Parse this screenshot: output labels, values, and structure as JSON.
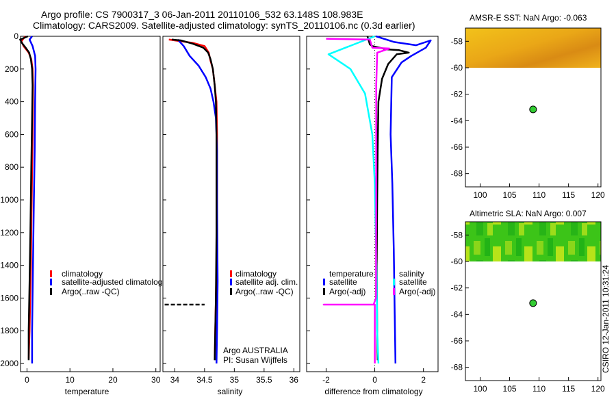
{
  "header": {
    "line1": "Argo profile: CS 7900317_3 06-Jan-2011 20110106_532 63.148S 108.983E",
    "line2": "Climatology: CARS2009. Satellite-adjusted climatology: synTS_20110106.nc (0.3d earlier)"
  },
  "stamp": "CSIRO 12-Jan-2011 10:31:24",
  "colors": {
    "red": "#ff0000",
    "blue": "#0000ff",
    "black": "#000000",
    "cyan": "#00ffff",
    "magenta": "#ff00ff",
    "float": "#33cc33"
  },
  "depth_axis": {
    "ylim": [
      0,
      2050
    ],
    "ticks": [
      0,
      200,
      400,
      600,
      800,
      1000,
      1200,
      1400,
      1600,
      1800,
      2000
    ]
  },
  "chart_data": [
    {
      "id": "temperature",
      "type": "line",
      "xlabel": "temperature",
      "xlim": [
        -1.5,
        31
      ],
      "xticks": [
        0,
        10,
        20,
        30
      ],
      "legend": [
        "climatology",
        "satellite-adjusted climatolog",
        "Argo(..raw -QC)"
      ],
      "series": [
        {
          "name": "climatology",
          "color": "red",
          "points": [
            [
              -0.4,
              0
            ],
            [
              -1.3,
              30
            ],
            [
              -0.8,
              60
            ],
            [
              0.4,
              100
            ],
            [
              1.0,
              140
            ],
            [
              1.3,
              200
            ],
            [
              1.4,
              300
            ],
            [
              1.3,
              600
            ],
            [
              1.1,
              1000
            ],
            [
              0.9,
              1400
            ],
            [
              0.6,
              1800
            ],
            [
              0.4,
              1970
            ]
          ]
        },
        {
          "name": "satellite-adjusted climatology",
          "color": "blue",
          "points": [
            [
              1.2,
              0
            ],
            [
              0.6,
              20
            ],
            [
              1.3,
              60
            ],
            [
              1.9,
              120
            ],
            [
              2.0,
              200
            ],
            [
              1.9,
              400
            ],
            [
              1.8,
              700
            ],
            [
              1.6,
              1000
            ],
            [
              1.4,
              1400
            ],
            [
              1.2,
              1800
            ],
            [
              1.2,
              2000
            ]
          ]
        },
        {
          "name": "Argo(..raw -QC)",
          "color": "black",
          "points": [
            [
              0.2,
              0
            ],
            [
              -1.6,
              20
            ],
            [
              -1.2,
              40
            ],
            [
              -0.3,
              70
            ],
            [
              0.5,
              100
            ],
            [
              0.9,
              140
            ],
            [
              1.2,
              200
            ],
            [
              1.3,
              300
            ],
            [
              1.2,
              500
            ],
            [
              1.0,
              800
            ],
            [
              0.8,
              1200
            ],
            [
              0.6,
              1500
            ],
            [
              0.4,
              1800
            ],
            [
              0.4,
              1980
            ]
          ]
        }
      ]
    },
    {
      "id": "salinity",
      "type": "line",
      "xlabel": "salinity",
      "xlim": [
        33.8,
        36.1
      ],
      "xticks": [
        34,
        34.5,
        35,
        35.5,
        36
      ],
      "legend": [
        "climatology",
        "satellite adj. clim.",
        "Argo(..raw -QC)"
      ],
      "annotation": [
        "Argo AUSTRALIA",
        "PI: Susan Wijffels"
      ],
      "series": [
        {
          "name": "climatology",
          "color": "red",
          "points": [
            [
              33.9,
              20
            ],
            [
              34.3,
              40
            ],
            [
              34.5,
              60
            ],
            [
              34.57,
              100
            ],
            [
              34.6,
              150
            ],
            [
              34.64,
              200
            ],
            [
              34.67,
              300
            ],
            [
              34.7,
              400
            ],
            [
              34.71,
              600
            ],
            [
              34.71,
              900
            ],
            [
              34.71,
              1200
            ],
            [
              34.69,
              1600
            ],
            [
              34.67,
              1970
            ]
          ]
        },
        {
          "name": "satellite adj. clim.",
          "color": "blue",
          "points": [
            [
              34.05,
              20
            ],
            [
              34.15,
              60
            ],
            [
              34.25,
              120
            ],
            [
              34.4,
              180
            ],
            [
              34.52,
              250
            ],
            [
              34.6,
              320
            ],
            [
              34.65,
              400
            ],
            [
              34.69,
              500
            ],
            [
              34.71,
              700
            ],
            [
              34.71,
              1000
            ],
            [
              34.72,
              1500
            ],
            [
              34.71,
              1800
            ],
            [
              34.7,
              2000
            ]
          ]
        },
        {
          "name": "Argo(..raw -QC)",
          "color": "black",
          "points": [
            [
              33.95,
              20
            ],
            [
              34.1,
              25
            ],
            [
              34.3,
              45
            ],
            [
              34.48,
              70
            ],
            [
              34.56,
              100
            ],
            [
              34.6,
              140
            ],
            [
              34.64,
              200
            ],
            [
              34.67,
              300
            ],
            [
              34.69,
              400
            ],
            [
              34.7,
              600
            ],
            [
              34.7,
              900
            ],
            [
              34.7,
              1200
            ],
            [
              34.69,
              1600
            ],
            [
              34.67,
              1980
            ]
          ]
        },
        {
          "name": "Argo surface flag",
          "color": "black",
          "dashed": true,
          "points": [
            [
              33.83,
              1640
            ],
            [
              34.5,
              1640
            ]
          ]
        }
      ]
    },
    {
      "id": "difference",
      "type": "line",
      "xlabel": "difference from climatology",
      "xlim": [
        -2.8,
        2.6
      ],
      "xticks": [
        -2,
        0,
        2
      ],
      "legend_left_title": "temperature",
      "legend_right_title": "salinity",
      "legend_left": [
        "satellite",
        "Argo(-adj)"
      ],
      "legend_right": [
        "satellite",
        "Argo(-adj)"
      ],
      "series": [
        {
          "name": "temperature satellite",
          "color": "blue",
          "points": [
            [
              0.05,
              0
            ],
            [
              0.8,
              35
            ],
            [
              1.7,
              55
            ],
            [
              2.3,
              25
            ],
            [
              2.1,
              70
            ],
            [
              1.5,
              120
            ],
            [
              1.1,
              160
            ],
            [
              0.7,
              250
            ],
            [
              0.65,
              600
            ],
            [
              0.72,
              900
            ],
            [
              0.78,
              1300
            ],
            [
              0.82,
              1700
            ],
            [
              0.85,
              2000
            ]
          ]
        },
        {
          "name": "temperature Argo(-adj)",
          "color": "black",
          "points": [
            [
              -0.3,
              0
            ],
            [
              -0.2,
              50
            ],
            [
              -0.1,
              60
            ],
            [
              0.5,
              80
            ],
            [
              1.0,
              85
            ],
            [
              1.4,
              100
            ],
            [
              0.9,
              110
            ],
            [
              0.55,
              170
            ],
            [
              0.3,
              260
            ],
            [
              0.15,
              400
            ],
            [
              0.12,
              700
            ],
            [
              0.1,
              1000
            ],
            [
              0.08,
              1400
            ],
            [
              0.1,
              1800
            ],
            [
              0.12,
              1980
            ]
          ]
        },
        {
          "name": "salinity satellite",
          "color": "cyan",
          "points": [
            [
              0.0,
              0
            ],
            [
              -1.9,
              110
            ],
            [
              -1.0,
              200
            ],
            [
              -0.4,
              350
            ],
            [
              -0.1,
              600
            ],
            [
              0.0,
              900
            ],
            [
              0.08,
              1500
            ],
            [
              0.1,
              1800
            ],
            [
              0.15,
              2000
            ]
          ]
        },
        {
          "name": "salinity Argo(-adj)",
          "color": "magenta",
          "points": [
            [
              -2.0,
              15
            ],
            [
              -0.2,
              20
            ],
            [
              -0.1,
              70
            ],
            [
              0.6,
              75
            ],
            [
              0.1,
              100
            ],
            [
              0.06,
              300
            ],
            [
              0.06,
              1000
            ],
            [
              0.05,
              1600
            ],
            [
              -0.05,
              1640
            ],
            [
              -2.1,
              1640
            ],
            [
              0.0,
              1640
            ],
            [
              0.0,
              2000
            ]
          ]
        }
      ]
    }
  ],
  "maps": [
    {
      "id": "sst-map",
      "title": "AMSR-E SST: NaN Argo: -0.063",
      "type": "map",
      "lon_range": [
        97.5,
        120.5
      ],
      "lat_range": [
        -69,
        -57
      ],
      "lon_ticks": [
        100,
        105,
        110,
        115,
        120
      ],
      "lat_ticks": [
        -58,
        -60,
        -62,
        -64,
        -66,
        -68
      ],
      "data_lat_min": -60,
      "float_position": [
        108.983,
        -63.148
      ]
    },
    {
      "id": "sla-map",
      "title": "Altimetric SLA: NaN Argo: 0.007",
      "type": "map",
      "lon_range": [
        97.5,
        120.5
      ],
      "lat_range": [
        -69,
        -57
      ],
      "lon_ticks": [
        100,
        105,
        110,
        115,
        120
      ],
      "lat_ticks": [
        -58,
        -60,
        -62,
        -64,
        -66,
        -68
      ],
      "data_lat_min": -60,
      "float_position": [
        108.983,
        -63.148
      ]
    }
  ]
}
